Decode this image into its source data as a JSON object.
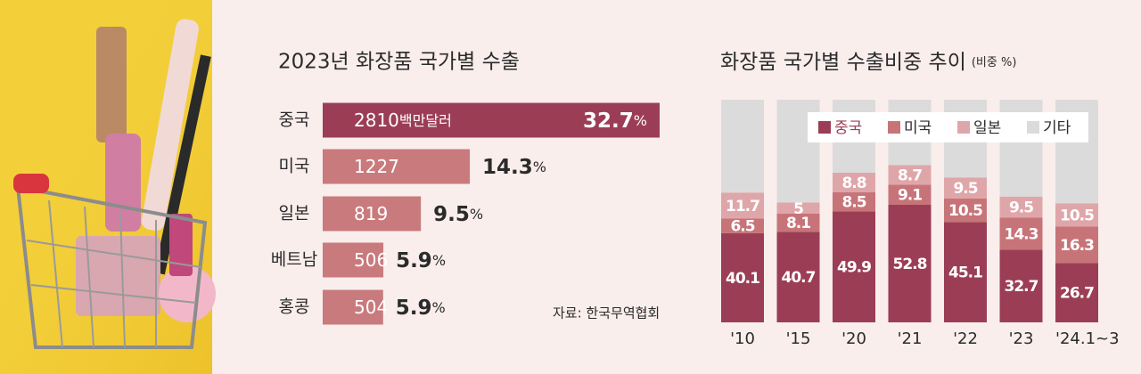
{
  "chart_data": [
    {
      "type": "hbar",
      "title": "2023년 화장품 국가별 수출",
      "categories": [
        "중국",
        "미국",
        "일본",
        "베트남",
        "홍콩"
      ],
      "values": [
        2810,
        1227,
        819,
        506,
        504
      ],
      "value_unit": "백만달러",
      "shares": [
        32.7,
        14.3,
        9.5,
        5.9,
        5.9
      ],
      "share_unit": "%",
      "color": "#c97a7d",
      "highlight_color": "#9b3e55",
      "source": "자료: 한국무역협회"
    },
    {
      "type": "stacked_bar",
      "title": "화장품 국가별 수출비중 추이",
      "subtitle": "(비중 %)",
      "categories": [
        "'10",
        "'15",
        "'20",
        "'21",
        "'22",
        "'23",
        "'24.1~3"
      ],
      "series": [
        {
          "name": "중국",
          "color": "#9b3e55",
          "values": [
            40.1,
            40.7,
            49.9,
            52.8,
            45.1,
            32.7,
            26.7
          ]
        },
        {
          "name": "미국",
          "color": "#c77479",
          "values": [
            6.5,
            8.1,
            8.5,
            9.1,
            10.5,
            14.3,
            16.3
          ]
        },
        {
          "name": "일본",
          "color": "#dfa6aa",
          "values": [
            11.7,
            5.0,
            8.8,
            8.7,
            9.5,
            9.5,
            10.5
          ]
        },
        {
          "name": "기타",
          "color": "#dcdbdb",
          "values": [
            41.7,
            46.2,
            32.8,
            29.4,
            34.9,
            43.5,
            46.5
          ],
          "labeled": false
        }
      ],
      "ylim": [
        0,
        100
      ],
      "legend": "top-right"
    }
  ]
}
